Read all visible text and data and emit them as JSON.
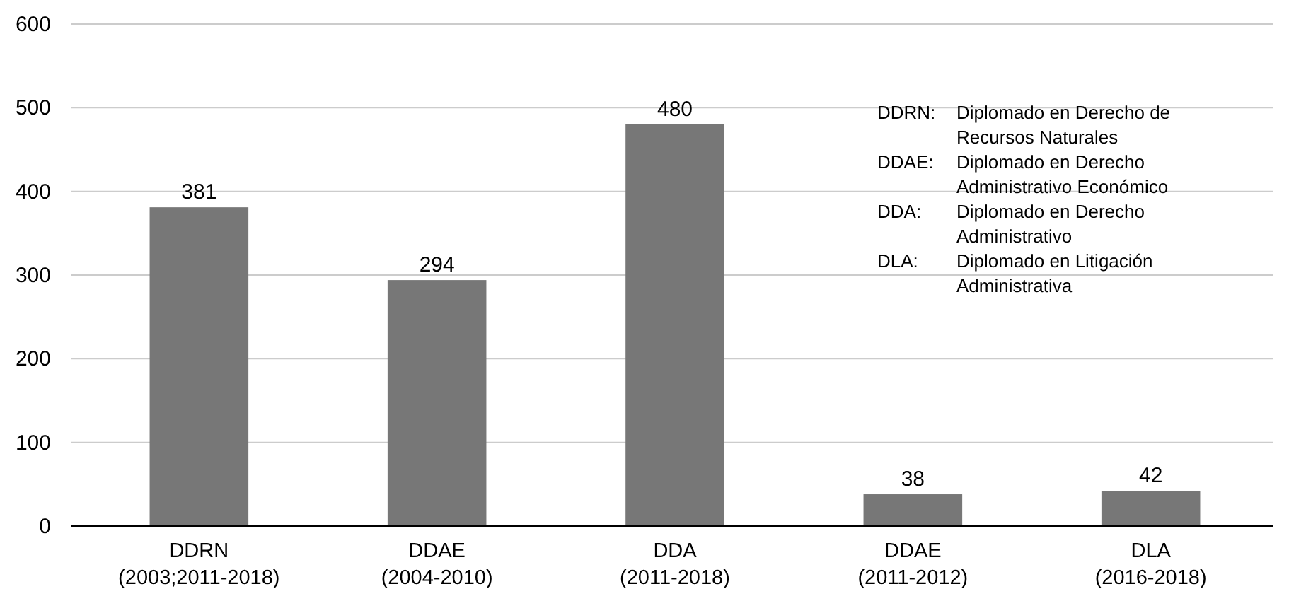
{
  "chart_data": {
    "type": "bar",
    "categories": [
      "DDRN\n(2003;2011-2018)",
      "DDAE\n(2004-2010)",
      "DDA\n(2011-2018)",
      "DDAE\n(2011-2012)",
      "DLA\n(2016-2018)"
    ],
    "values": [
      381,
      294,
      480,
      38,
      42
    ],
    "color": "#777777",
    "ylim": [
      0,
      600
    ],
    "yticks": [
      0,
      100,
      200,
      300,
      400,
      500,
      600
    ],
    "grid": "y",
    "data_labels": true,
    "annotations": [
      "DDRN: Diplomado en Derecho de Recursos Naturales",
      "DDAE: Diplomado en Derecho Administrativo Económico",
      "DDA: Diplomado en Derecho Administrativo",
      "DLA: Diplomado en Litigación Administrativa"
    ]
  }
}
